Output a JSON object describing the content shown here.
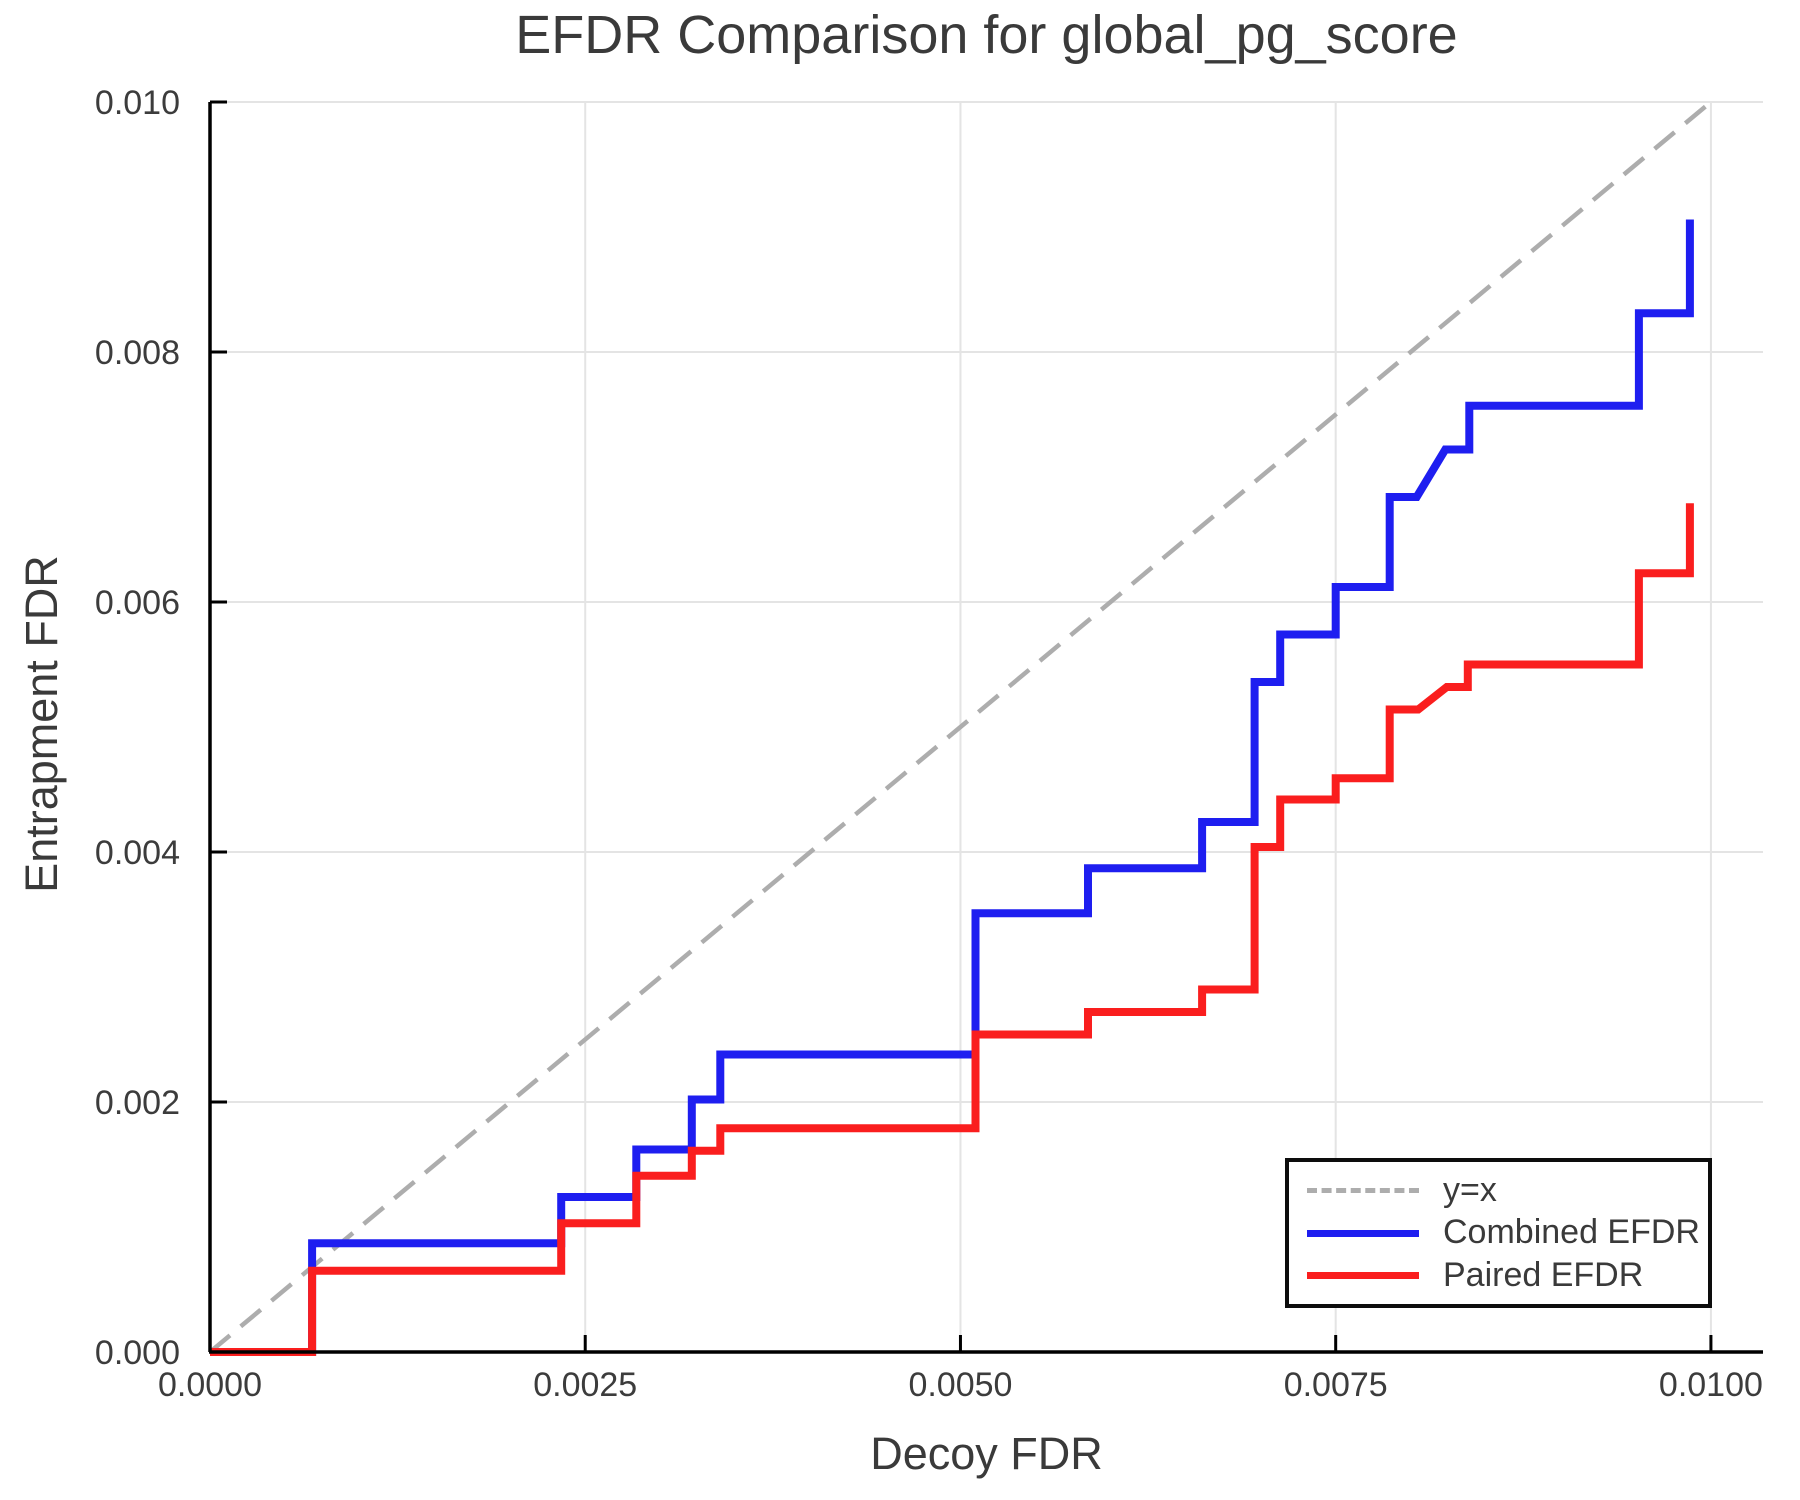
{
  "figure": {
    "title": "EFDR Comparison for global_pg_score",
    "background": "#ffffff"
  },
  "chart_data": {
    "type": "line",
    "title": "EFDR Comparison for global_pg_score",
    "xlabel": "Decoy FDR",
    "ylabel": "Entrapment FDR",
    "xlim": [
      0.0,
      0.010347
    ],
    "ylim": [
      0.0,
      0.01
    ],
    "grid": true,
    "grid_color": "#e4e4e4",
    "spine_color": "#000000",
    "tick_label_color": "#3c3c3c",
    "xticks": [
      {
        "v": 0.0,
        "label": "0.0000"
      },
      {
        "v": 0.0025,
        "label": "0.0025"
      },
      {
        "v": 0.005,
        "label": "0.0050"
      },
      {
        "v": 0.0075,
        "label": "0.0075"
      },
      {
        "v": 0.01,
        "label": "0.0100"
      }
    ],
    "yticks": [
      {
        "v": 0.0,
        "label": "0.000"
      },
      {
        "v": 0.002,
        "label": "0.002"
      },
      {
        "v": 0.004,
        "label": "0.004"
      },
      {
        "v": 0.006,
        "label": "0.006"
      },
      {
        "v": 0.008,
        "label": "0.008"
      },
      {
        "v": 0.01,
        "label": "0.010"
      }
    ],
    "series": [
      {
        "name": "y=x",
        "style": "dashed",
        "color": "#adadad",
        "width": 4.5,
        "dash": "26 14",
        "points": [
          [
            0.0,
            0.0
          ],
          [
            0.01,
            0.01
          ]
        ]
      },
      {
        "name": "Combined EFDR",
        "style": "solid",
        "color": "#1e1ef0",
        "width": 8,
        "points": [
          [
            0.0,
            0.0
          ],
          [
            0.00068,
            0.0
          ],
          [
            0.00068,
            0.00087
          ],
          [
            0.00234,
            0.00087
          ],
          [
            0.00234,
            0.00124
          ],
          [
            0.00284,
            0.00124
          ],
          [
            0.00284,
            0.00162
          ],
          [
            0.00321,
            0.00162
          ],
          [
            0.00321,
            0.00202
          ],
          [
            0.0034,
            0.00202
          ],
          [
            0.0034,
            0.00238
          ],
          [
            0.0051,
            0.00238
          ],
          [
            0.0051,
            0.00351
          ],
          [
            0.00585,
            0.00351
          ],
          [
            0.00585,
            0.00387
          ],
          [
            0.00661,
            0.00387
          ],
          [
            0.00661,
            0.00424
          ],
          [
            0.00696,
            0.00424
          ],
          [
            0.00696,
            0.00536
          ],
          [
            0.00713,
            0.00536
          ],
          [
            0.00713,
            0.00574
          ],
          [
            0.0075,
            0.00574
          ],
          [
            0.0075,
            0.00612
          ],
          [
            0.00786,
            0.00612
          ],
          [
            0.00786,
            0.00684
          ],
          [
            0.00804,
            0.00684
          ],
          [
            0.00823,
            0.00722
          ],
          [
            0.00839,
            0.00722
          ],
          [
            0.00839,
            0.00757
          ],
          [
            0.00952,
            0.00757
          ],
          [
            0.00952,
            0.00831
          ],
          [
            0.00986,
            0.00831
          ],
          [
            0.00986,
            0.00906
          ]
        ]
      },
      {
        "name": "Paired EFDR",
        "style": "solid",
        "color": "#fa1e1e",
        "width": 8,
        "points": [
          [
            0.0,
            0.0
          ],
          [
            0.00068,
            0.0
          ],
          [
            0.00068,
            0.00065
          ],
          [
            0.00234,
            0.00065
          ],
          [
            0.00234,
            0.00103
          ],
          [
            0.00284,
            0.00103
          ],
          [
            0.00284,
            0.00141
          ],
          [
            0.00321,
            0.00141
          ],
          [
            0.00321,
            0.00161
          ],
          [
            0.0034,
            0.00161
          ],
          [
            0.0034,
            0.00179
          ],
          [
            0.0051,
            0.00179
          ],
          [
            0.0051,
            0.00254
          ],
          [
            0.00585,
            0.00254
          ],
          [
            0.00585,
            0.00272
          ],
          [
            0.00661,
            0.00272
          ],
          [
            0.00661,
            0.0029
          ],
          [
            0.00696,
            0.0029
          ],
          [
            0.00696,
            0.00404
          ],
          [
            0.00713,
            0.00404
          ],
          [
            0.00713,
            0.00442
          ],
          [
            0.0075,
            0.00442
          ],
          [
            0.0075,
            0.00459
          ],
          [
            0.00786,
            0.00459
          ],
          [
            0.00786,
            0.00514
          ],
          [
            0.00805,
            0.00514
          ],
          [
            0.00824,
            0.00532
          ],
          [
            0.00838,
            0.00532
          ],
          [
            0.00838,
            0.0055
          ],
          [
            0.00952,
            0.0055
          ],
          [
            0.00952,
            0.00623
          ],
          [
            0.00986,
            0.00623
          ],
          [
            0.00986,
            0.00679
          ]
        ]
      }
    ],
    "legend": {
      "position": "lower right",
      "items": [
        {
          "label": "y=x",
          "swatch": "dashed",
          "color": "#adadad"
        },
        {
          "label": "Combined EFDR",
          "swatch": "solid",
          "color": "#1e1ef0"
        },
        {
          "label": "Paired EFDR",
          "swatch": "solid",
          "color": "#fa1e1e"
        }
      ]
    }
  }
}
